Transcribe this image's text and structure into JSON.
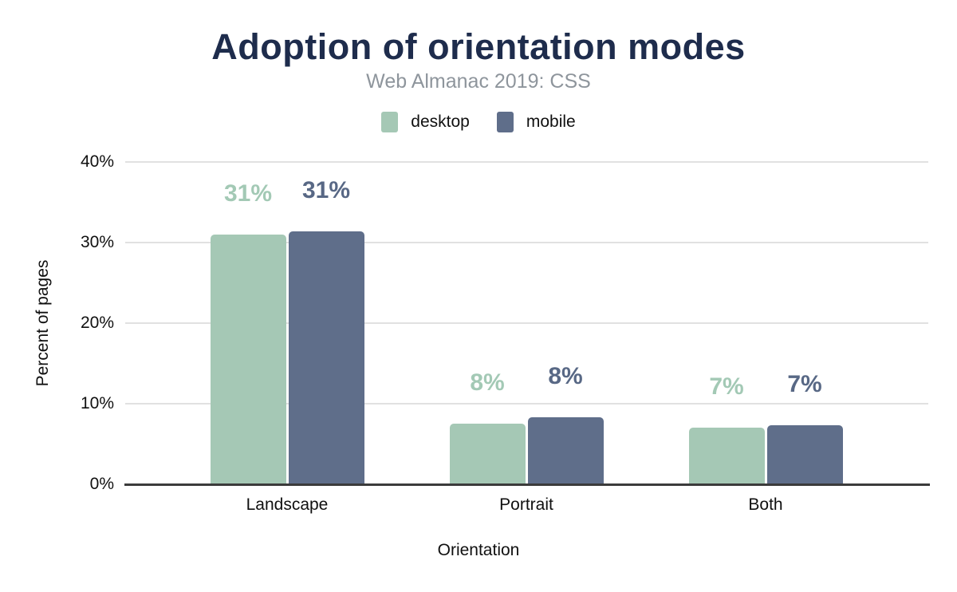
{
  "header": {
    "title": "Adoption of orientation modes",
    "subtitle": "Web Almanac 2019: CSS"
  },
  "chart_data": {
    "type": "bar",
    "title": "Adoption of orientation modes",
    "subtitle": "Web Almanac 2019: CSS",
    "categories": [
      "Landscape",
      "Portrait",
      "Both"
    ],
    "series": [
      {
        "name": "desktop",
        "color": "#a5c8b5",
        "label_color": "#a3c9b5",
        "values": [
          31.0,
          7.5,
          7.0
        ],
        "labels": [
          "31%",
          "8%",
          "7%"
        ]
      },
      {
        "name": "mobile",
        "color": "#5f6e8a",
        "label_color": "#586885",
        "values": [
          31.4,
          8.3,
          7.3
        ],
        "labels": [
          "31%",
          "8%",
          "7%"
        ]
      }
    ],
    "xlabel": "Orientation",
    "ylabel": "Percent of pages",
    "yticks": [
      {
        "value": 0,
        "label": "0%"
      },
      {
        "value": 10,
        "label": "10%"
      },
      {
        "value": 20,
        "label": "20%"
      },
      {
        "value": 30,
        "label": "30%"
      },
      {
        "value": 40,
        "label": "40%"
      }
    ],
    "ylim": [
      0,
      40
    ],
    "grid": true,
    "legend_position": "top"
  }
}
